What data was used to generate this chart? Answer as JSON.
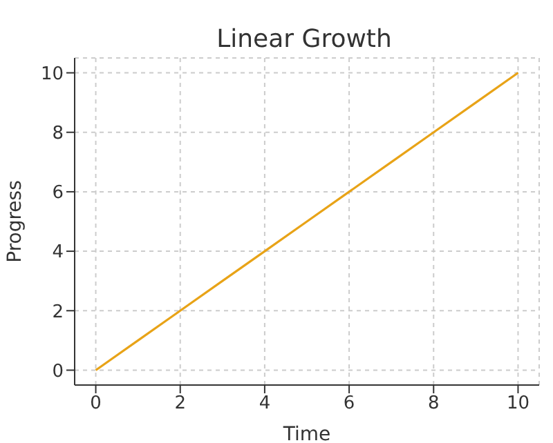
{
  "chart_data": {
    "type": "line",
    "title": "Linear Growth",
    "xlabel": "Time",
    "ylabel": "Progress",
    "x": [
      0,
      1,
      2,
      3,
      4,
      5,
      6,
      7,
      8,
      9,
      10
    ],
    "series": [
      {
        "color": "#e8a317",
        "values": [
          0,
          1,
          2,
          3,
          4,
          5,
          6,
          7,
          8,
          9,
          10
        ]
      }
    ],
    "xlim": [
      -0.5,
      10.5
    ],
    "ylim": [
      -0.5,
      10.5
    ],
    "xticks": [
      0,
      2,
      4,
      6,
      8,
      10
    ],
    "yticks": [
      0,
      2,
      4,
      6,
      8,
      10
    ],
    "grid": true,
    "legend": false,
    "marker": "none",
    "line_style": "solid"
  }
}
